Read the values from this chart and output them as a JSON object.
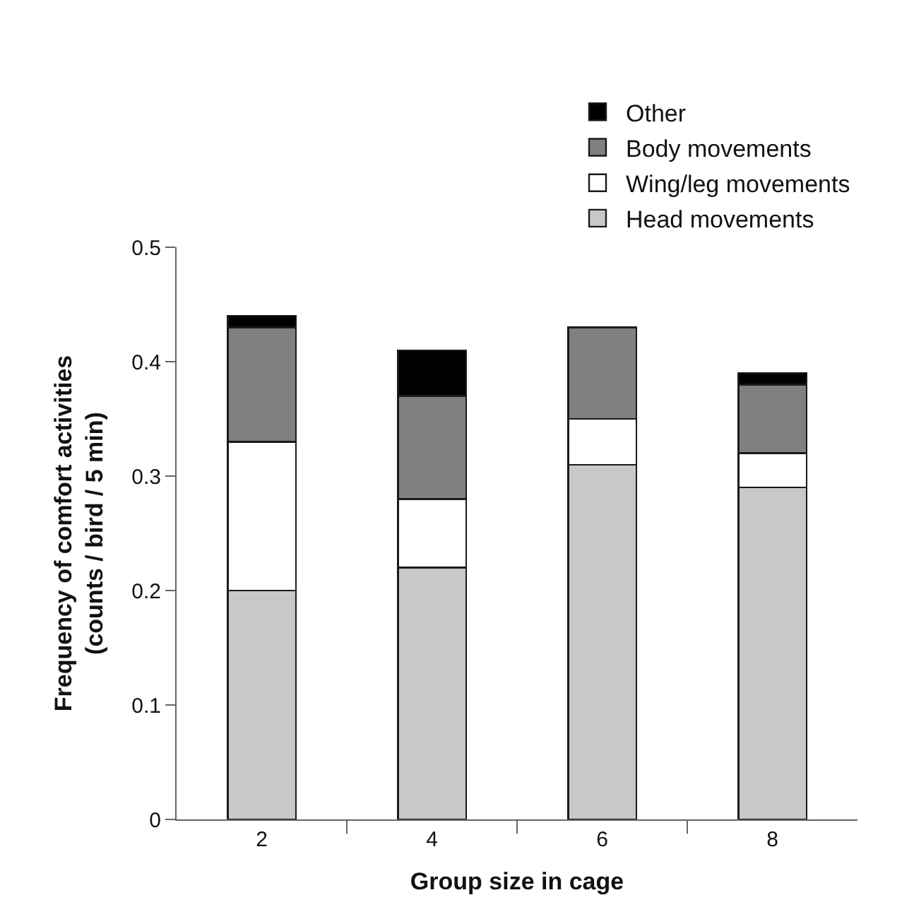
{
  "chart_data": {
    "type": "bar",
    "stacked": true,
    "xlabel": "Group size in cage",
    "ylabel": "Frequency of comfort activities\n(counts / bird / 5 min)",
    "categories": [
      "2",
      "4",
      "6",
      "8"
    ],
    "series": [
      {
        "name": "Head movements",
        "color": "#c8c8c8",
        "values": [
          0.2,
          0.22,
          0.31,
          0.29
        ]
      },
      {
        "name": "Wing/leg movements",
        "color": "#ffffff",
        "values": [
          0.13,
          0.06,
          0.04,
          0.03
        ]
      },
      {
        "name": "Body movements",
        "color": "#808080",
        "values": [
          0.1,
          0.09,
          0.08,
          0.06
        ]
      },
      {
        "name": "Other",
        "color": "#000000",
        "values": [
          0.01,
          0.04,
          null,
          0.01
        ]
      }
    ],
    "ylim": [
      0,
      0.5
    ],
    "yticks": [
      0,
      0.1,
      0.2,
      0.3,
      0.4,
      0.5
    ],
    "legend": "top right"
  }
}
